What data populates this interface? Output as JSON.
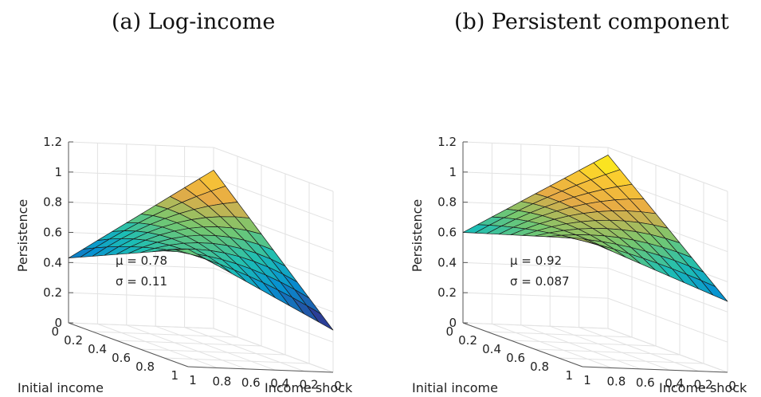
{
  "chart_data": [
    {
      "type": "surface",
      "title": "(a) Log-income",
      "zlabel": "Persistence",
      "xlabel": "Initial income",
      "ylabel": "Income shock",
      "zlim": [
        0,
        1.2
      ],
      "z_ticks": [
        "0",
        "0.2",
        "0.4",
        "0.6",
        "0.8",
        "1",
        "1.2"
      ],
      "x_ticks": [
        "0",
        "0.2",
        "0.4",
        "0.6",
        "0.8",
        "1"
      ],
      "y_ticks": [
        "0",
        "0.2",
        "0.4",
        "0.6",
        "0.8",
        "1"
      ],
      "annotation": {
        "mu": "μ = 0.78",
        "sigma": "σ = 0.11"
      },
      "surface": {
        "corners": {
          "x0y0": 1.05,
          "x1y0": 0.37,
          "x0y1": 0.34,
          "x1y1": 0.78
        },
        "peak": 0.78,
        "skew": 0.06,
        "curv": 0.22
      }
    },
    {
      "type": "surface",
      "title": "(b) Persistent component",
      "zlabel": "Persistence",
      "xlabel": "Initial income",
      "ylabel": "Income shock",
      "zlim": [
        0,
        1.2
      ],
      "z_ticks": [
        "0",
        "0.2",
        "0.4",
        "0.6",
        "0.8",
        "1",
        "1.2"
      ],
      "x_ticks": [
        "0",
        "0.2",
        "0.4",
        "0.6",
        "0.8",
        "1"
      ],
      "y_ticks": [
        "0",
        "0.2",
        "0.4",
        "0.6",
        "0.8",
        "1"
      ],
      "annotation": {
        "mu": "μ = 0.92",
        "sigma": "σ = 0.087"
      },
      "surface": {
        "corners": {
          "x0y0": 1.15,
          "x1y0": 0.57,
          "x0y1": 0.5,
          "x1y1": 0.85
        },
        "peak": 0.92,
        "skew": 0.03,
        "curv": 0.15
      }
    }
  ]
}
